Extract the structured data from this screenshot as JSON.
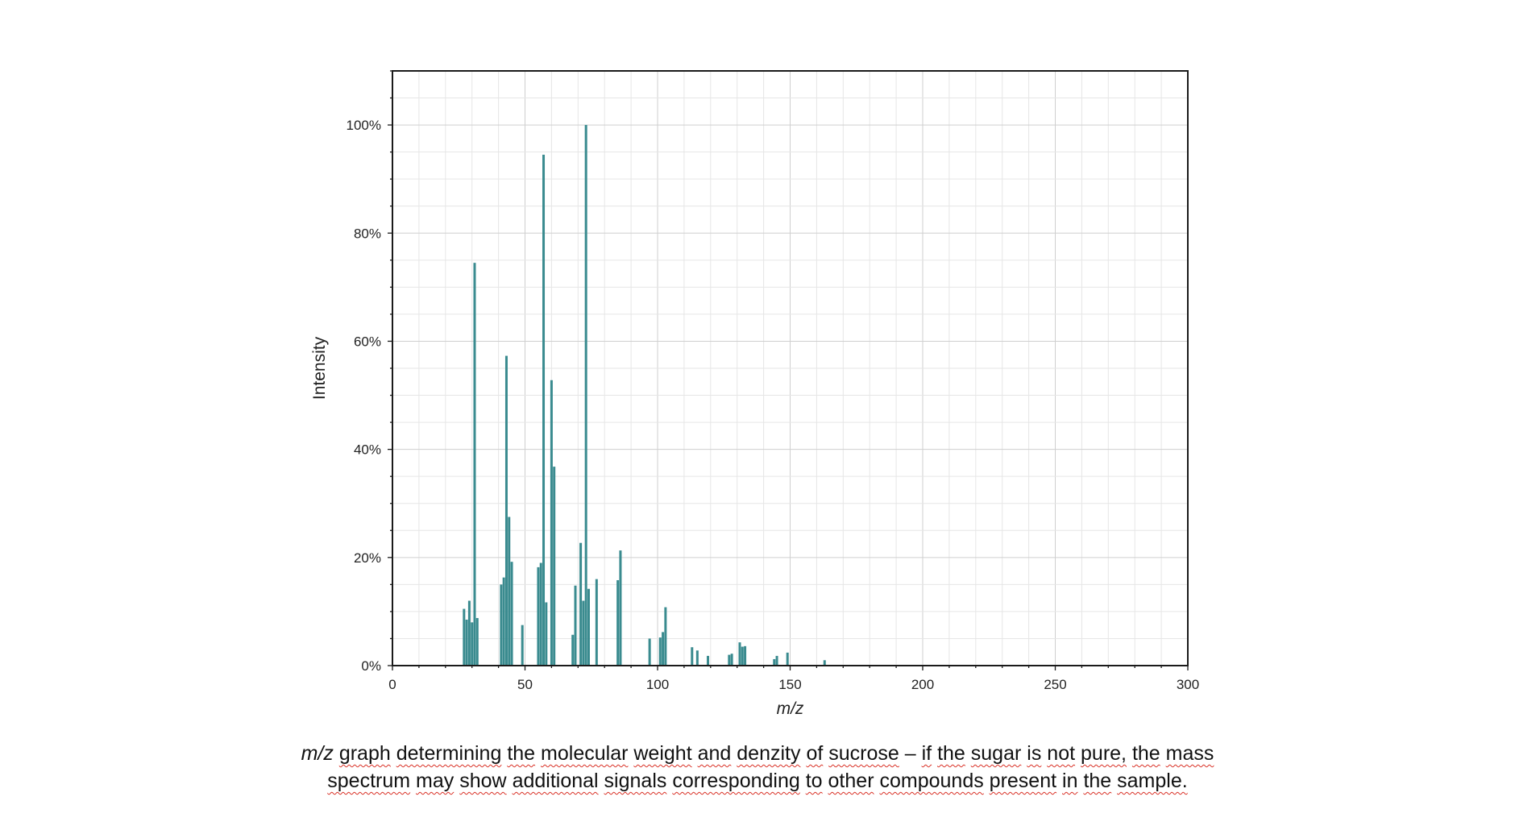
{
  "chart_data": {
    "type": "bar",
    "xlabel": "m/z",
    "ylabel": "Intensity",
    "xlim": [
      0,
      300
    ],
    "ylim": [
      0,
      110
    ],
    "xticks": [
      0,
      50,
      100,
      150,
      200,
      250,
      300
    ],
    "yticks": [
      0,
      20,
      40,
      60,
      80,
      100
    ],
    "ytick_labels": [
      "0%",
      "20%",
      "40%",
      "60%",
      "80%",
      "100%"
    ],
    "grid": true,
    "bar_color": "#3a8b8f",
    "points": [
      {
        "mz": 27,
        "intensity": 10.5
      },
      {
        "mz": 28,
        "intensity": 8.5
      },
      {
        "mz": 29,
        "intensity": 12.0
      },
      {
        "mz": 30,
        "intensity": 8.0
      },
      {
        "mz": 31,
        "intensity": 74.5
      },
      {
        "mz": 32,
        "intensity": 8.8
      },
      {
        "mz": 41,
        "intensity": 15.0
      },
      {
        "mz": 42,
        "intensity": 16.3
      },
      {
        "mz": 43,
        "intensity": 57.3
      },
      {
        "mz": 44,
        "intensity": 27.5
      },
      {
        "mz": 45,
        "intensity": 19.2
      },
      {
        "mz": 49,
        "intensity": 7.5
      },
      {
        "mz": 55,
        "intensity": 18.2
      },
      {
        "mz": 56,
        "intensity": 19.0
      },
      {
        "mz": 57,
        "intensity": 94.5
      },
      {
        "mz": 58,
        "intensity": 11.7
      },
      {
        "mz": 60,
        "intensity": 52.8
      },
      {
        "mz": 61,
        "intensity": 36.8
      },
      {
        "mz": 68,
        "intensity": 5.7
      },
      {
        "mz": 69,
        "intensity": 14.8
      },
      {
        "mz": 71,
        "intensity": 22.7
      },
      {
        "mz": 72,
        "intensity": 12.0
      },
      {
        "mz": 73,
        "intensity": 100.0
      },
      {
        "mz": 74,
        "intensity": 14.2
      },
      {
        "mz": 77,
        "intensity": 16.0
      },
      {
        "mz": 85,
        "intensity": 15.8
      },
      {
        "mz": 86,
        "intensity": 21.3
      },
      {
        "mz": 97,
        "intensity": 5.0
      },
      {
        "mz": 101,
        "intensity": 5.2
      },
      {
        "mz": 102,
        "intensity": 6.2
      },
      {
        "mz": 103,
        "intensity": 10.8
      },
      {
        "mz": 113,
        "intensity": 3.4
      },
      {
        "mz": 115,
        "intensity": 2.8
      },
      {
        "mz": 119,
        "intensity": 1.8
      },
      {
        "mz": 127,
        "intensity": 2.0
      },
      {
        "mz": 128,
        "intensity": 2.2
      },
      {
        "mz": 131,
        "intensity": 4.3
      },
      {
        "mz": 132,
        "intensity": 3.5
      },
      {
        "mz": 133,
        "intensity": 3.6
      },
      {
        "mz": 144,
        "intensity": 1.2
      },
      {
        "mz": 145,
        "intensity": 1.8
      },
      {
        "mz": 149,
        "intensity": 2.4
      },
      {
        "mz": 163,
        "intensity": 1.0
      }
    ]
  },
  "caption": {
    "line1_mz": "m/z",
    "line1_words": [
      "graph",
      "determining",
      "the",
      "molecular",
      "weight",
      "and",
      "denzity",
      "of",
      "sucrose",
      "–",
      "if",
      "the",
      "sugar",
      "is",
      "not",
      "pure,",
      "the",
      "mass"
    ],
    "line2_words": [
      "spectrum",
      "may",
      "show",
      "additional",
      "signals",
      "corresponding",
      "to",
      "other",
      "compounds",
      "present",
      "in",
      "the",
      "sample."
    ],
    "squiggle_color": "#d93025"
  }
}
